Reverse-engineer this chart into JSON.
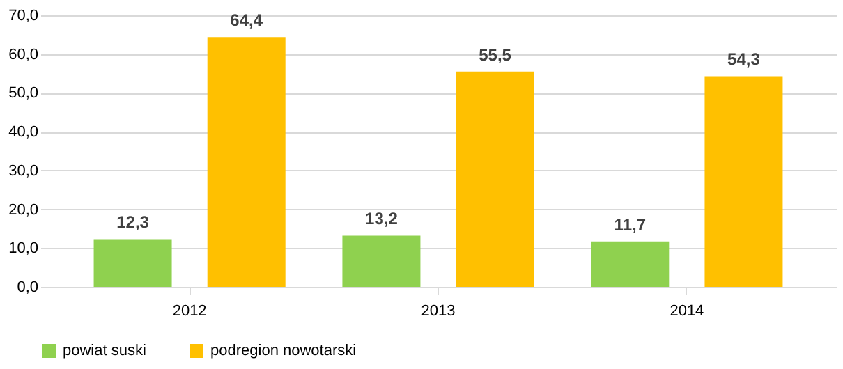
{
  "chart_data": {
    "type": "bar",
    "categories": [
      "2012",
      "2013",
      "2014"
    ],
    "series": [
      {
        "name": "powiat suski",
        "color": "#8fd14f",
        "values": [
          12.3,
          13.2,
          11.7
        ],
        "value_labels": [
          "12,3",
          "13,2",
          "11,7"
        ]
      },
      {
        "name": "podregion nowotarski",
        "color": "#ffc000",
        "values": [
          64.4,
          55.5,
          54.3
        ],
        "value_labels": [
          "64,4",
          "55,5",
          "54,3"
        ]
      }
    ],
    "ylim": [
      0,
      70
    ],
    "yticks": [
      {
        "value": 0,
        "label": "0,0"
      },
      {
        "value": 10,
        "label": "10,0"
      },
      {
        "value": 20,
        "label": "20,0"
      },
      {
        "value": 30,
        "label": "30,0"
      },
      {
        "value": 40,
        "label": "40,0"
      },
      {
        "value": 50,
        "label": "50,0"
      },
      {
        "value": 60,
        "label": "60,0"
      },
      {
        "value": 70,
        "label": "70,0"
      }
    ],
    "grid": "y",
    "legend": "bottom"
  }
}
